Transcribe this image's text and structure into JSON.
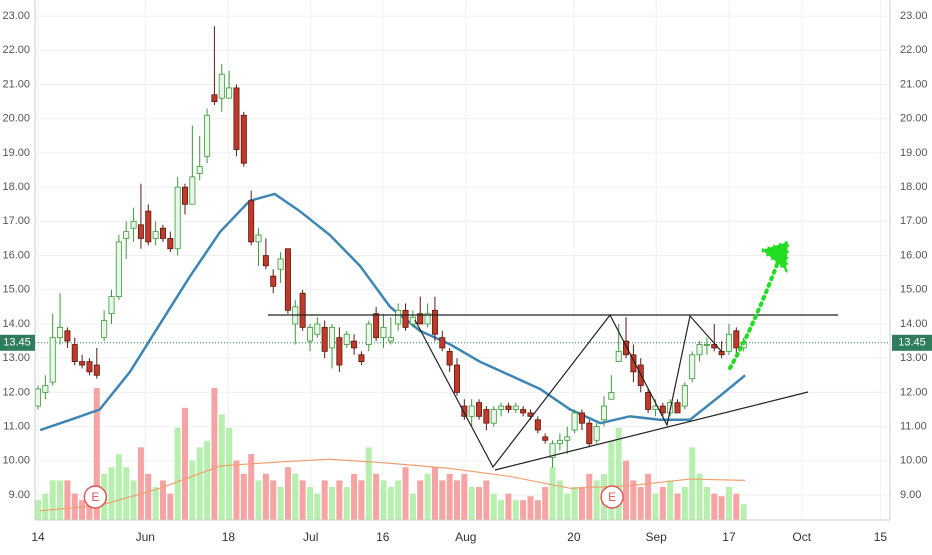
{
  "chart_data": {
    "type": "candlestick",
    "ylim": [
      8.27,
      23.47
    ],
    "xlim": [
      0,
      115.5
    ],
    "yticks": [
      {
        "value": 9,
        "label": "9.00"
      },
      {
        "value": 10,
        "label": "10.00"
      },
      {
        "value": 11,
        "label": "11.00"
      },
      {
        "value": 12,
        "label": "12.00"
      },
      {
        "value": 13,
        "label": "13.00"
      },
      {
        "value": 14,
        "label": "14.00"
      },
      {
        "value": 15,
        "label": "15.00"
      },
      {
        "value": 16,
        "label": "16.00"
      },
      {
        "value": 17,
        "label": "17.00"
      },
      {
        "value": 18,
        "label": "18.00"
      },
      {
        "value": 19,
        "label": "19.00"
      },
      {
        "value": 20,
        "label": "20.00"
      },
      {
        "value": 21,
        "label": "21.00"
      },
      {
        "value": 22,
        "label": "22.00"
      },
      {
        "value": 23,
        "label": "23.00"
      }
    ],
    "xticks": [
      {
        "value": 0,
        "label": "14"
      },
      {
        "value": 14.6,
        "label": "Jun"
      },
      {
        "value": 25.9,
        "label": "18"
      },
      {
        "value": 37.1,
        "label": "Jul"
      },
      {
        "value": 46.9,
        "label": "16"
      },
      {
        "value": 58.2,
        "label": "Aug"
      },
      {
        "value": 72.9,
        "label": "20"
      },
      {
        "value": 84.1,
        "label": "Sep"
      },
      {
        "value": 94,
        "label": "17"
      },
      {
        "value": 103.9,
        "label": "Oct"
      },
      {
        "value": 114.6,
        "label": "15"
      }
    ],
    "grid": true,
    "up_color": "#3a9a3a",
    "down_color": "#c0392b",
    "volume_up_color": "#b6efae",
    "volume_down_color": "#f5a3a3",
    "open": [
      11.6,
      12.0,
      12.3,
      13.6,
      13.8,
      13.4,
      12.9,
      12.9,
      12.8,
      13.6,
      14.3,
      14.8,
      16.5,
      16.8,
      16.9,
      17.3,
      16.5,
      16.8,
      16.5,
      16.2,
      18.0,
      17.5,
      18.4,
      18.9,
      20.7,
      20.6,
      20.6,
      20.9,
      20.1,
      17.6,
      16.4,
      16.0,
      15.4,
      15.6,
      16.2,
      14.0,
      14.9,
      13.5,
      13.7,
      13.9,
      13.3,
      13.6,
      13.4,
      13.5,
      13.1,
      13.4,
      14.3,
      13.6,
      13.5,
      14.0,
      14.4,
      14.0,
      14.3,
      14.0,
      14.4,
      13.6,
      13.2,
      12.8,
      11.6,
      11.3,
      11.7,
      11.5,
      11.1,
      11.5,
      11.6,
      11.5,
      11.5,
      11.4,
      11.2,
      10.7,
      10.1,
      10.5,
      10.6,
      10.9,
      11.4,
      11.1,
      10.6,
      11.2,
      11.8,
      12.9,
      13.5,
      13.1,
      12.8,
      12.0,
      11.5,
      11.6,
      11.4,
      11.7,
      11.6,
      12.4,
      13.1,
      13.4,
      13.4,
      13.2,
      13.2,
      13.8,
      13.3
    ],
    "high": [
      12.2,
      12.5,
      14.3,
      14.9,
      13.9,
      13.6,
      13.1,
      13.0,
      13.3,
      14.4,
      15.0,
      16.6,
      17.0,
      17.4,
      18.1,
      17.5,
      17.0,
      16.9,
      16.7,
      18.3,
      18.1,
      19.8,
      19.5,
      20.3,
      22.7,
      21.6,
      21.4,
      21.0,
      20.2,
      17.9,
      16.8,
      16.5,
      15.6,
      16.1,
      16.2,
      14.7,
      15.0,
      14.0,
      14.2,
      14.1,
      14.0,
      13.9,
      13.8,
      13.7,
      13.2,
      14.1,
      14.5,
      14.3,
      14.2,
      14.6,
      14.6,
      14.4,
      14.8,
      14.6,
      14.8,
      13.8,
      13.3,
      13.0,
      11.8,
      11.8,
      11.8,
      11.6,
      11.6,
      11.7,
      11.7,
      11.7,
      11.6,
      11.5,
      11.3,
      10.8,
      10.6,
      10.8,
      11.0,
      11.5,
      11.5,
      11.2,
      11.1,
      11.9,
      12.5,
      14.0,
      14.2,
      13.4,
      13.0,
      12.1,
      11.8,
      11.7,
      11.8,
      11.8,
      12.3,
      13.2,
      13.5,
      13.6,
      14.0,
      13.5,
      14.0,
      13.9,
      13.6
    ],
    "low": [
      11.5,
      11.8,
      12.2,
      13.4,
      13.3,
      12.8,
      12.7,
      12.5,
      12.4,
      13.5,
      14.0,
      14.7,
      15.9,
      16.4,
      16.2,
      16.3,
      16.3,
      16.4,
      16.1,
      16.0,
      17.2,
      17.5,
      18.2,
      18.7,
      20.4,
      20.2,
      20.6,
      18.9,
      18.6,
      16.3,
      15.7,
      15.6,
      14.9,
      15.2,
      14.3,
      13.4,
      13.8,
      13.2,
      13.6,
      13.0,
      12.7,
      12.6,
      13.3,
      13.1,
      12.8,
      13.2,
      13.5,
      13.3,
      13.4,
      13.8,
      13.8,
      13.9,
      14.0,
      13.9,
      13.5,
      13.2,
      12.6,
      11.9,
      11.2,
      11.0,
      11.2,
      10.9,
      11.0,
      11.3,
      11.4,
      11.4,
      11.3,
      11.2,
      10.8,
      10.5,
      9.8,
      10.3,
      10.2,
      10.8,
      10.9,
      10.4,
      10.5,
      11.0,
      11.8,
      12.9,
      13.0,
      12.3,
      12.0,
      11.4,
      11.3,
      11.3,
      11.3,
      11.4,
      11.5,
      12.3,
      12.9,
      13.1,
      13.2,
      13.0,
      13.1,
      13.1,
      13.2
    ],
    "close": [
      12.1,
      12.2,
      13.6,
      13.9,
      13.5,
      12.9,
      12.8,
      12.6,
      12.5,
      14.1,
      14.8,
      16.4,
      16.7,
      17.0,
      16.5,
      16.4,
      16.7,
      16.5,
      16.2,
      18.0,
      17.5,
      18.3,
      18.6,
      20.1,
      20.5,
      21.3,
      20.9,
      19.1,
      18.7,
      16.4,
      16.6,
      15.7,
      15.1,
      15.9,
      14.4,
      14.5,
      13.9,
      13.9,
      14.0,
      13.2,
      13.9,
      12.8,
      13.7,
      13.3,
      12.9,
      14.0,
      13.6,
      13.9,
      13.6,
      14.4,
      13.9,
      14.2,
      14.0,
      14.3,
      13.7,
      13.3,
      12.8,
      12.0,
      11.3,
      11.6,
      11.3,
      11.1,
      11.5,
      11.6,
      11.5,
      11.6,
      11.4,
      11.3,
      10.9,
      10.6,
      10.5,
      10.6,
      10.7,
      11.4,
      11.1,
      10.5,
      11.0,
      11.6,
      12.0,
      13.2,
      13.1,
      12.6,
      12.2,
      11.5,
      11.6,
      11.4,
      11.7,
      11.4,
      12.2,
      13.1,
      13.4,
      13.4,
      13.3,
      13.1,
      13.7,
      13.3,
      13.45
    ],
    "volume": [
      15,
      20,
      30,
      30,
      30,
      20,
      15,
      18,
      100,
      35,
      40,
      50,
      40,
      30,
      55,
      35,
      25,
      30,
      20,
      70,
      85,
      45,
      55,
      60,
      100,
      80,
      70,
      45,
      35,
      50,
      30,
      35,
      30,
      25,
      40,
      35,
      30,
      25,
      20,
      30,
      25,
      30,
      25,
      35,
      30,
      55,
      35,
      30,
      25,
      30,
      40,
      20,
      30,
      35,
      40,
      30,
      35,
      30,
      35,
      25,
      25,
      30,
      20,
      15,
      20,
      15,
      15,
      18,
      15,
      25,
      40,
      30,
      20,
      25,
      25,
      35,
      30,
      35,
      60,
      70,
      45,
      30,
      25,
      35,
      20,
      25,
      30,
      20,
      25,
      55,
      35,
      25,
      20,
      18,
      25,
      20,
      12
    ],
    "volume_lim": [
      0,
      100
    ],
    "ma": {
      "color": "#3d85b5",
      "x": [
        0.3,
        4.4,
        8.4,
        12.5,
        16.6,
        20.7,
        24.8,
        28.8,
        32.2,
        35.6,
        39.7,
        43.8,
        47.9,
        51.96,
        56.1,
        60.1,
        64.2,
        68.3,
        72.4,
        76.5,
        80.5,
        84.6,
        88.7,
        92.8,
        96.2
      ],
      "values": [
        10.9,
        11.2,
        11.5,
        12.6,
        14.0,
        15.4,
        16.7,
        17.6,
        17.8,
        17.3,
        16.6,
        15.7,
        14.5,
        13.8,
        13.4,
        12.9,
        12.5,
        12.1,
        11.5,
        11.1,
        11.3,
        11.2,
        11.2,
        11.9,
        12.5
      ]
    },
    "volume_ma": {
      "color": "#f0a070",
      "x": [
        0.3,
        8.4,
        16.6,
        24.8,
        32.9,
        39.7,
        47.9,
        56.1,
        64.2,
        72.4,
        80.5,
        88.7,
        96.2
      ],
      "values": [
        7,
        11,
        24,
        41,
        44,
        46,
        43,
        39,
        33,
        24,
        26,
        31,
        30
      ]
    },
    "last_price": 13.45,
    "last_price_color": "#2e7d5b",
    "earnings": [
      {
        "x": 7.8,
        "label": "E"
      },
      {
        "x": 78.1,
        "label": "E"
      }
    ]
  }
}
